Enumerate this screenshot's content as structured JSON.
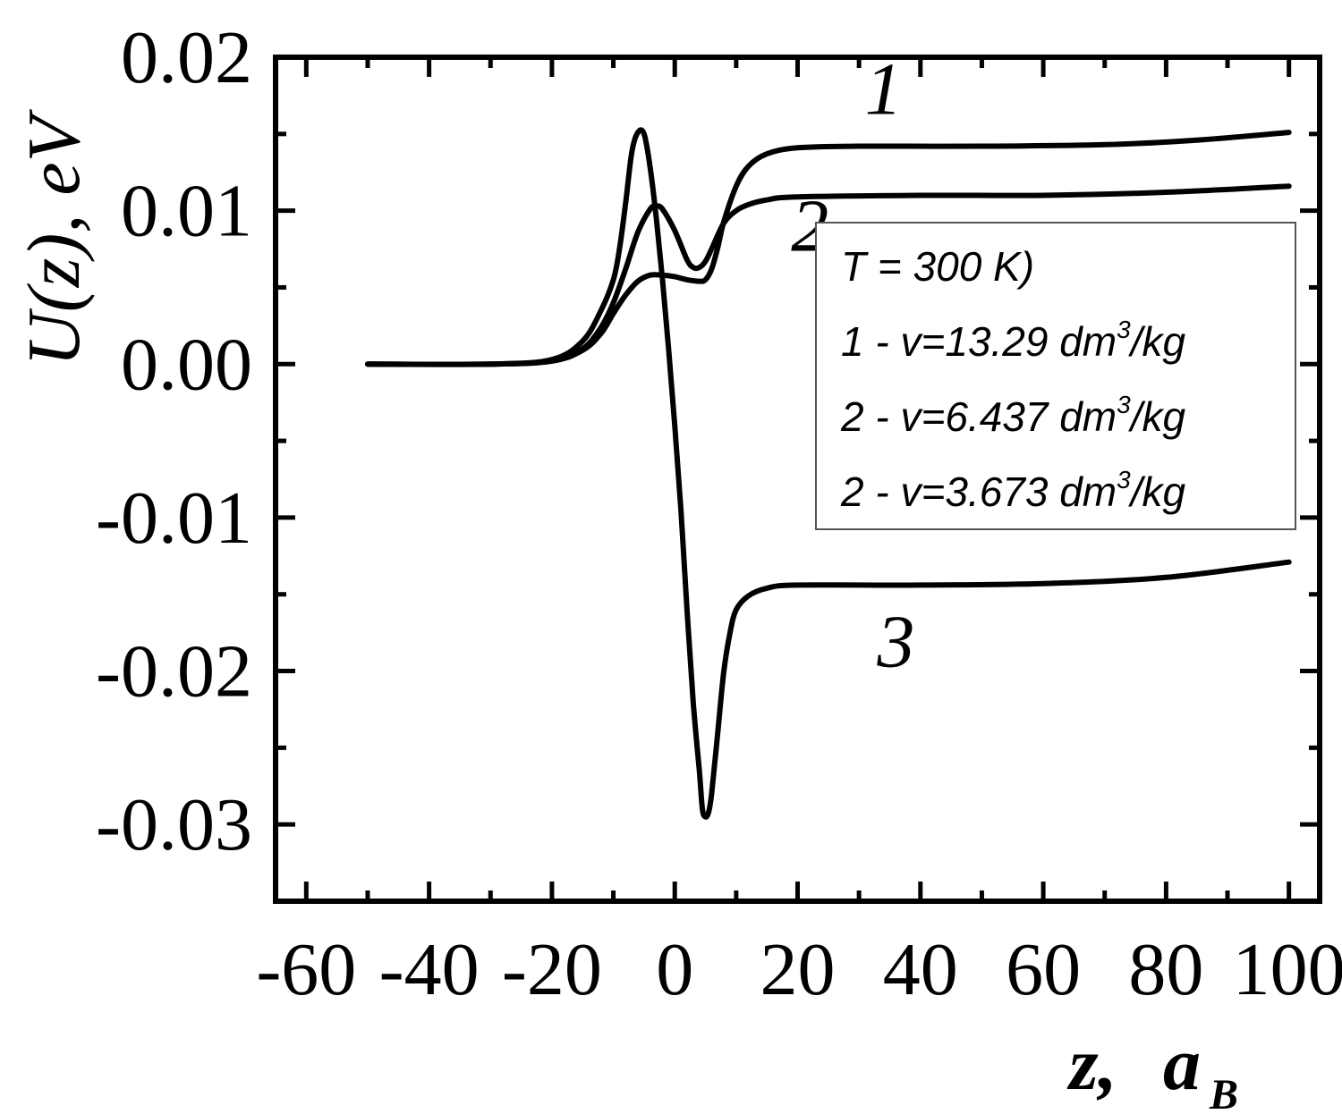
{
  "chart_data": {
    "type": "line",
    "title": "",
    "xlabel": "z,",
    "xlabel_unit_main": "a",
    "xlabel_unit_sub": "B",
    "ylabel": "U(z),  eV",
    "xlim": [
      -60,
      100
    ],
    "ylim": [
      -0.035,
      0.02
    ],
    "x_ticks": [
      -60,
      -40,
      -20,
      0,
      20,
      40,
      60,
      80,
      100
    ],
    "x_tick_labels": [
      "-60",
      "-40",
      "-20",
      "0",
      "20",
      "40",
      "60",
      "80",
      "100"
    ],
    "y_ticks": [
      0.02,
      0.01,
      0.0,
      -0.01,
      -0.02,
      -0.03
    ],
    "y_tick_labels": [
      "0.02",
      "0.01",
      "0.00",
      "-0.01",
      "-0.02",
      "-0.03"
    ],
    "grid": false,
    "legend": {
      "position": "upper-right",
      "header": "T = 300 K)",
      "entries": [
        {
          "prefix": "1 - v=13.29 dm",
          "sup": "3",
          "suffix": "/kg"
        },
        {
          "prefix": "2 - v=6.437 dm",
          "sup": "3",
          "suffix": "/kg"
        },
        {
          "prefix": "2 - v=3.673 dm",
          "sup": "3",
          "suffix": "/kg"
        }
      ]
    },
    "series": [
      {
        "label": "1",
        "color": "#000000",
        "points": [
          [
            -50,
            0.0
          ],
          [
            -30,
            0.0
          ],
          [
            -20,
            0.0002
          ],
          [
            -15,
            0.0009
          ],
          [
            -12,
            0.002
          ],
          [
            -10,
            0.0033
          ],
          [
            -8,
            0.0045
          ],
          [
            -6,
            0.0054
          ],
          [
            -4,
            0.0058
          ],
          [
            -2,
            0.0058
          ],
          [
            0,
            0.0057
          ],
          [
            2,
            0.0055
          ],
          [
            4,
            0.0054
          ],
          [
            5,
            0.0055
          ],
          [
            6,
            0.0062
          ],
          [
            7,
            0.0076
          ],
          [
            8,
            0.0093
          ],
          [
            10,
            0.0116
          ],
          [
            12,
            0.0129
          ],
          [
            15,
            0.0137
          ],
          [
            20,
            0.0141
          ],
          [
            30,
            0.0142
          ],
          [
            50,
            0.0142
          ],
          [
            70,
            0.0143
          ],
          [
            85,
            0.0146
          ],
          [
            100,
            0.0151
          ]
        ]
      },
      {
        "label": "2",
        "color": "#000000",
        "points": [
          [
            -50,
            0.0
          ],
          [
            -30,
            0.0
          ],
          [
            -20,
            0.0002
          ],
          [
            -15,
            0.001
          ],
          [
            -12,
            0.0024
          ],
          [
            -10,
            0.004
          ],
          [
            -8,
            0.0062
          ],
          [
            -6,
            0.0086
          ],
          [
            -4,
            0.0101
          ],
          [
            -3,
            0.0103
          ],
          [
            -2,
            0.0101
          ],
          [
            0,
            0.0087
          ],
          [
            2,
            0.0068
          ],
          [
            3,
            0.0063
          ],
          [
            4,
            0.0063
          ],
          [
            5,
            0.0067
          ],
          [
            6,
            0.0075
          ],
          [
            8,
            0.0092
          ],
          [
            10,
            0.01
          ],
          [
            12,
            0.0104
          ],
          [
            15,
            0.0107
          ],
          [
            20,
            0.0109
          ],
          [
            40,
            0.011
          ],
          [
            60,
            0.011
          ],
          [
            80,
            0.0112
          ],
          [
            100,
            0.0116
          ]
        ]
      },
      {
        "label": "3",
        "color": "#000000",
        "points": [
          [
            -50,
            0.0
          ],
          [
            -30,
            0.0
          ],
          [
            -20,
            0.0003
          ],
          [
            -15,
            0.0015
          ],
          [
            -12,
            0.0035
          ],
          [
            -10,
            0.0055
          ],
          [
            -9,
            0.0075
          ],
          [
            -8,
            0.0105
          ],
          [
            -7,
            0.0138
          ],
          [
            -6,
            0.0151
          ],
          [
            -5,
            0.015
          ],
          [
            -4,
            0.0128
          ],
          [
            -3,
            0.0095
          ],
          [
            -2,
            0.0055
          ],
          [
            -1,
            0.001
          ],
          [
            0,
            -0.004
          ],
          [
            1,
            -0.0095
          ],
          [
            2,
            -0.016
          ],
          [
            3,
            -0.022
          ],
          [
            4,
            -0.0265
          ],
          [
            4.5,
            -0.029
          ],
          [
            5,
            -0.0295
          ],
          [
            5.5,
            -0.0292
          ],
          [
            6,
            -0.028
          ],
          [
            7,
            -0.024
          ],
          [
            8,
            -0.02
          ],
          [
            9,
            -0.0175
          ],
          [
            10,
            -0.016
          ],
          [
            12,
            -0.0151
          ],
          [
            15,
            -0.0146
          ],
          [
            20,
            -0.0144
          ],
          [
            40,
            -0.0144
          ],
          [
            60,
            -0.0143
          ],
          [
            80,
            -0.0139
          ],
          [
            100,
            -0.0129
          ]
        ]
      }
    ],
    "curve_labels": [
      {
        "text": "1",
        "x": 34,
        "y": 0.0163
      },
      {
        "text": "2",
        "x": 22,
        "y": 0.0074
      },
      {
        "text": "3",
        "x": 36,
        "y": -0.0197
      }
    ]
  }
}
